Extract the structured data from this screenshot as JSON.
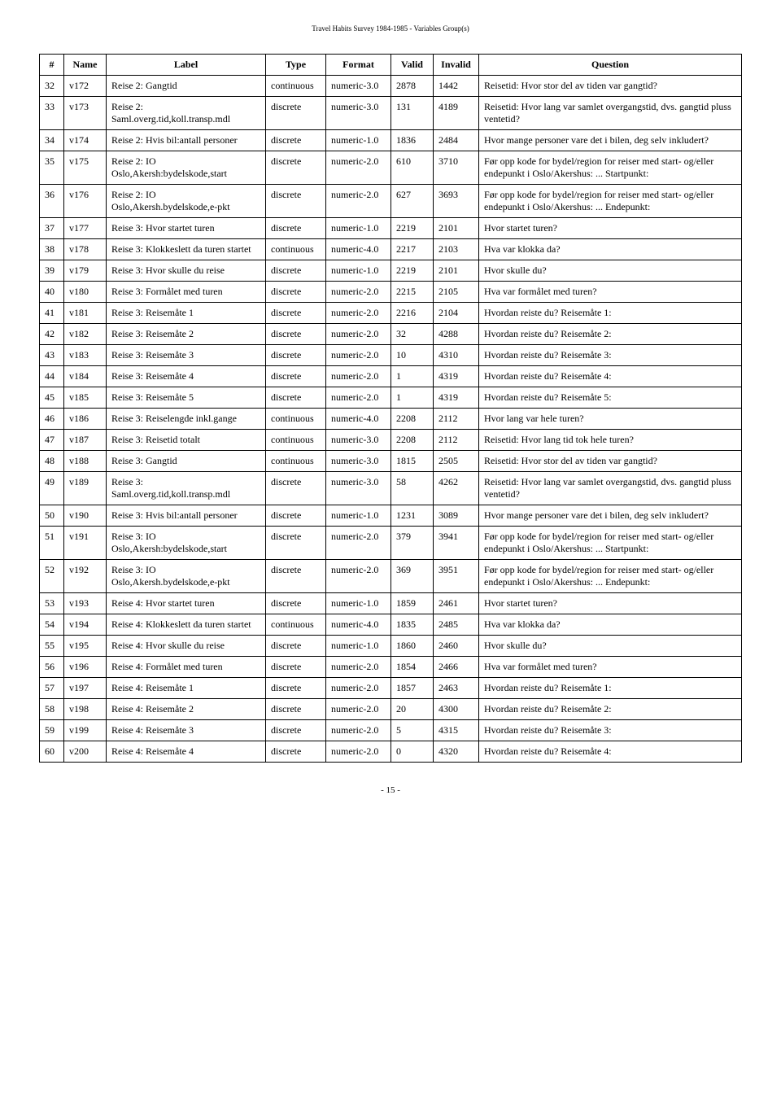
{
  "header": "Travel Habits Survey 1984-1985 - Variables Group(s)",
  "columns": [
    "#",
    "Name",
    "Label",
    "Type",
    "Format",
    "Valid",
    "Invalid",
    "Question"
  ],
  "rows": [
    [
      "32",
      "v172",
      "Reise 2: Gangtid",
      "continuous",
      "numeric-3.0",
      "2878",
      "1442",
      "Reisetid: Hvor stor del av tiden var gangtid?"
    ],
    [
      "33",
      "v173",
      "Reise 2: Saml.overg.tid,koll.transp.mdl",
      "discrete",
      "numeric-3.0",
      "131",
      "4189",
      "Reisetid: Hvor lang var samlet overgangstid, dvs. gangtid pluss ventetid?"
    ],
    [
      "34",
      "v174",
      "Reise 2: Hvis bil:antall personer",
      "discrete",
      "numeric-1.0",
      "1836",
      "2484",
      "Hvor mange personer vare det i bilen, deg selv inkludert?"
    ],
    [
      "35",
      "v175",
      "Reise 2: IO Oslo,Akersh:bydelskode,start",
      "discrete",
      "numeric-2.0",
      "610",
      "3710",
      "Før opp kode for bydel/region for reiser med start- og/eller endepunkt i Oslo/Akershus: ... Startpunkt:"
    ],
    [
      "36",
      "v176",
      "Reise 2: IO Oslo,Akersh.bydelskode,e-pkt",
      "discrete",
      "numeric-2.0",
      "627",
      "3693",
      "Før opp kode for bydel/region for reiser med start- og/eller endepunkt i Oslo/Akershus: ... Endepunkt:"
    ],
    [
      "37",
      "v177",
      "Reise 3: Hvor startet turen",
      "discrete",
      "numeric-1.0",
      "2219",
      "2101",
      "Hvor startet turen?"
    ],
    [
      "38",
      "v178",
      "Reise 3: Klokkeslett da turen startet",
      "continuous",
      "numeric-4.0",
      "2217",
      "2103",
      "Hva var klokka da?"
    ],
    [
      "39",
      "v179",
      "Reise 3: Hvor skulle du reise",
      "discrete",
      "numeric-1.0",
      "2219",
      "2101",
      "Hvor skulle du?"
    ],
    [
      "40",
      "v180",
      "Reise 3: Formålet med turen",
      "discrete",
      "numeric-2.0",
      "2215",
      "2105",
      "Hva var formålet med turen?"
    ],
    [
      "41",
      "v181",
      "Reise 3: Reisemåte 1",
      "discrete",
      "numeric-2.0",
      "2216",
      "2104",
      "Hvordan reiste du? Reisemåte 1:"
    ],
    [
      "42",
      "v182",
      "Reise 3: Reisemåte 2",
      "discrete",
      "numeric-2.0",
      "32",
      "4288",
      "Hvordan reiste du? Reisemåte 2:"
    ],
    [
      "43",
      "v183",
      "Reise 3: Reisemåte 3",
      "discrete",
      "numeric-2.0",
      "10",
      "4310",
      "Hvordan reiste du? Reisemåte 3:"
    ],
    [
      "44",
      "v184",
      "Reise 3: Reisemåte 4",
      "discrete",
      "numeric-2.0",
      "1",
      "4319",
      "Hvordan reiste du? Reisemåte 4:"
    ],
    [
      "45",
      "v185",
      "Reise 3: Reisemåte 5",
      "discrete",
      "numeric-2.0",
      "1",
      "4319",
      "Hvordan reiste du? Reisemåte 5:"
    ],
    [
      "46",
      "v186",
      "Reise 3: Reiselengde inkl.gange",
      "continuous",
      "numeric-4.0",
      "2208",
      "2112",
      "Hvor lang var hele turen?"
    ],
    [
      "47",
      "v187",
      "Reise 3: Reisetid totalt",
      "continuous",
      "numeric-3.0",
      "2208",
      "2112",
      "Reisetid: Hvor lang tid tok hele turen?"
    ],
    [
      "48",
      "v188",
      "Reise 3: Gangtid",
      "continuous",
      "numeric-3.0",
      "1815",
      "2505",
      "Reisetid: Hvor stor del av tiden var gangtid?"
    ],
    [
      "49",
      "v189",
      "Reise 3: Saml.overg.tid,koll.transp.mdl",
      "discrete",
      "numeric-3.0",
      "58",
      "4262",
      "Reisetid: Hvor lang var samlet overgangstid, dvs. gangtid pluss ventetid?"
    ],
    [
      "50",
      "v190",
      "Reise 3: Hvis bil:antall personer",
      "discrete",
      "numeric-1.0",
      "1231",
      "3089",
      "Hvor mange personer vare det i bilen, deg selv inkludert?"
    ],
    [
      "51",
      "v191",
      "Reise 3: IO Oslo,Akersh:bydelskode,start",
      "discrete",
      "numeric-2.0",
      "379",
      "3941",
      "Før opp kode for bydel/region for reiser med start- og/eller endepunkt i Oslo/Akershus: ... Startpunkt:"
    ],
    [
      "52",
      "v192",
      "Reise 3: IO Oslo,Akersh.bydelskode,e-pkt",
      "discrete",
      "numeric-2.0",
      "369",
      "3951",
      "Før opp kode for bydel/region for reiser med start- og/eller endepunkt i Oslo/Akershus: ... Endepunkt:"
    ],
    [
      "53",
      "v193",
      "Reise 4: Hvor startet turen",
      "discrete",
      "numeric-1.0",
      "1859",
      "2461",
      "Hvor startet turen?"
    ],
    [
      "54",
      "v194",
      "Reise 4: Klokkeslett da turen startet",
      "continuous",
      "numeric-4.0",
      "1835",
      "2485",
      "Hva var klokka da?"
    ],
    [
      "55",
      "v195",
      "Reise 4: Hvor skulle du reise",
      "discrete",
      "numeric-1.0",
      "1860",
      "2460",
      "Hvor skulle du?"
    ],
    [
      "56",
      "v196",
      "Reise 4: Formålet med turen",
      "discrete",
      "numeric-2.0",
      "1854",
      "2466",
      "Hva var formålet med turen?"
    ],
    [
      "57",
      "v197",
      "Reise 4: Reisemåte 1",
      "discrete",
      "numeric-2.0",
      "1857",
      "2463",
      "Hvordan reiste du? Reisemåte 1:"
    ],
    [
      "58",
      "v198",
      "Reise 4: Reisemåte 2",
      "discrete",
      "numeric-2.0",
      "20",
      "4300",
      "Hvordan reiste du? Reisemåte 2:"
    ],
    [
      "59",
      "v199",
      "Reise 4: Reisemåte 3",
      "discrete",
      "numeric-2.0",
      "5",
      "4315",
      "Hvordan reiste du? Reisemåte 3:"
    ],
    [
      "60",
      "v200",
      "Reise 4: Reisemåte 4",
      "discrete",
      "numeric-2.0",
      "0",
      "4320",
      "Hvordan reiste du? Reisemåte 4:"
    ]
  ],
  "page_number": "- 15 -"
}
